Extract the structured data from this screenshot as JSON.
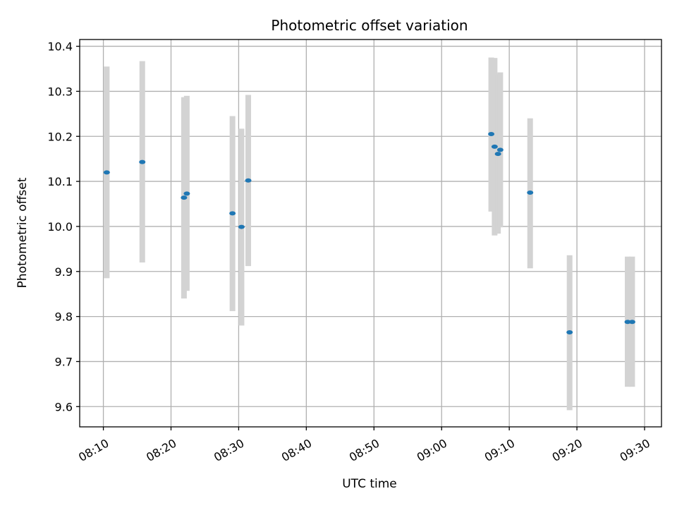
{
  "chart_data": {
    "type": "scatter",
    "title": "Photometric offset variation",
    "xlabel": "UTC time",
    "ylabel": "Photometric offset",
    "xlim": [
      "08:06:30",
      "09:32:30"
    ],
    "ylim": [
      9.555,
      10.415
    ],
    "x_ticks": [
      "08:10",
      "08:20",
      "08:30",
      "08:40",
      "08:50",
      "09:00",
      "09:10",
      "09:20",
      "09:30"
    ],
    "y_ticks": [
      9.6,
      9.7,
      9.8,
      9.9,
      10.0,
      10.1,
      10.2,
      10.3,
      10.4
    ],
    "y_tick_labels": [
      "9.6",
      "9.7",
      "9.8",
      "9.9",
      "10.0",
      "10.1",
      "10.2",
      "10.3",
      "10.4"
    ],
    "grid": true,
    "colors": {
      "point": "#1f77b4",
      "error_bar": "#d3d3d3",
      "grid": "#b0b0b0"
    },
    "series": [
      {
        "points": [
          {
            "time": "08:10:30",
            "value": 10.12,
            "err_low": 9.885,
            "err_high": 10.355
          },
          {
            "time": "08:15:45",
            "value": 10.143,
            "err_low": 9.92,
            "err_high": 10.367
          },
          {
            "time": "08:21:55",
            "value": 10.064,
            "err_low": 9.84,
            "err_high": 10.287
          },
          {
            "time": "08:22:20",
            "value": 10.073,
            "err_low": 9.857,
            "err_high": 10.29
          },
          {
            "time": "08:29:05",
            "value": 10.029,
            "err_low": 9.812,
            "err_high": 10.245
          },
          {
            "time": "08:30:25",
            "value": 9.999,
            "err_low": 9.78,
            "err_high": 10.217
          },
          {
            "time": "08:31:25",
            "value": 10.102,
            "err_low": 9.912,
            "err_high": 10.292
          },
          {
            "time": "09:07:20",
            "value": 10.205,
            "err_low": 10.033,
            "err_high": 10.375
          },
          {
            "time": "09:07:50",
            "value": 10.177,
            "err_low": 9.98,
            "err_high": 10.374
          },
          {
            "time": "09:08:20",
            "value": 10.161,
            "err_low": 9.984,
            "err_high": 10.338
          },
          {
            "time": "09:08:40",
            "value": 10.17,
            "err_low": 9.998,
            "err_high": 10.342
          },
          {
            "time": "09:13:05",
            "value": 10.075,
            "err_low": 9.907,
            "err_high": 10.24
          },
          {
            "time": "09:18:55",
            "value": 9.765,
            "err_low": 9.592,
            "err_high": 9.936
          },
          {
            "time": "09:27:30",
            "value": 9.788,
            "err_low": 9.644,
            "err_high": 9.933
          },
          {
            "time": "09:28:10",
            "value": 9.788,
            "err_low": 9.644,
            "err_high": 9.933
          }
        ]
      }
    ]
  }
}
